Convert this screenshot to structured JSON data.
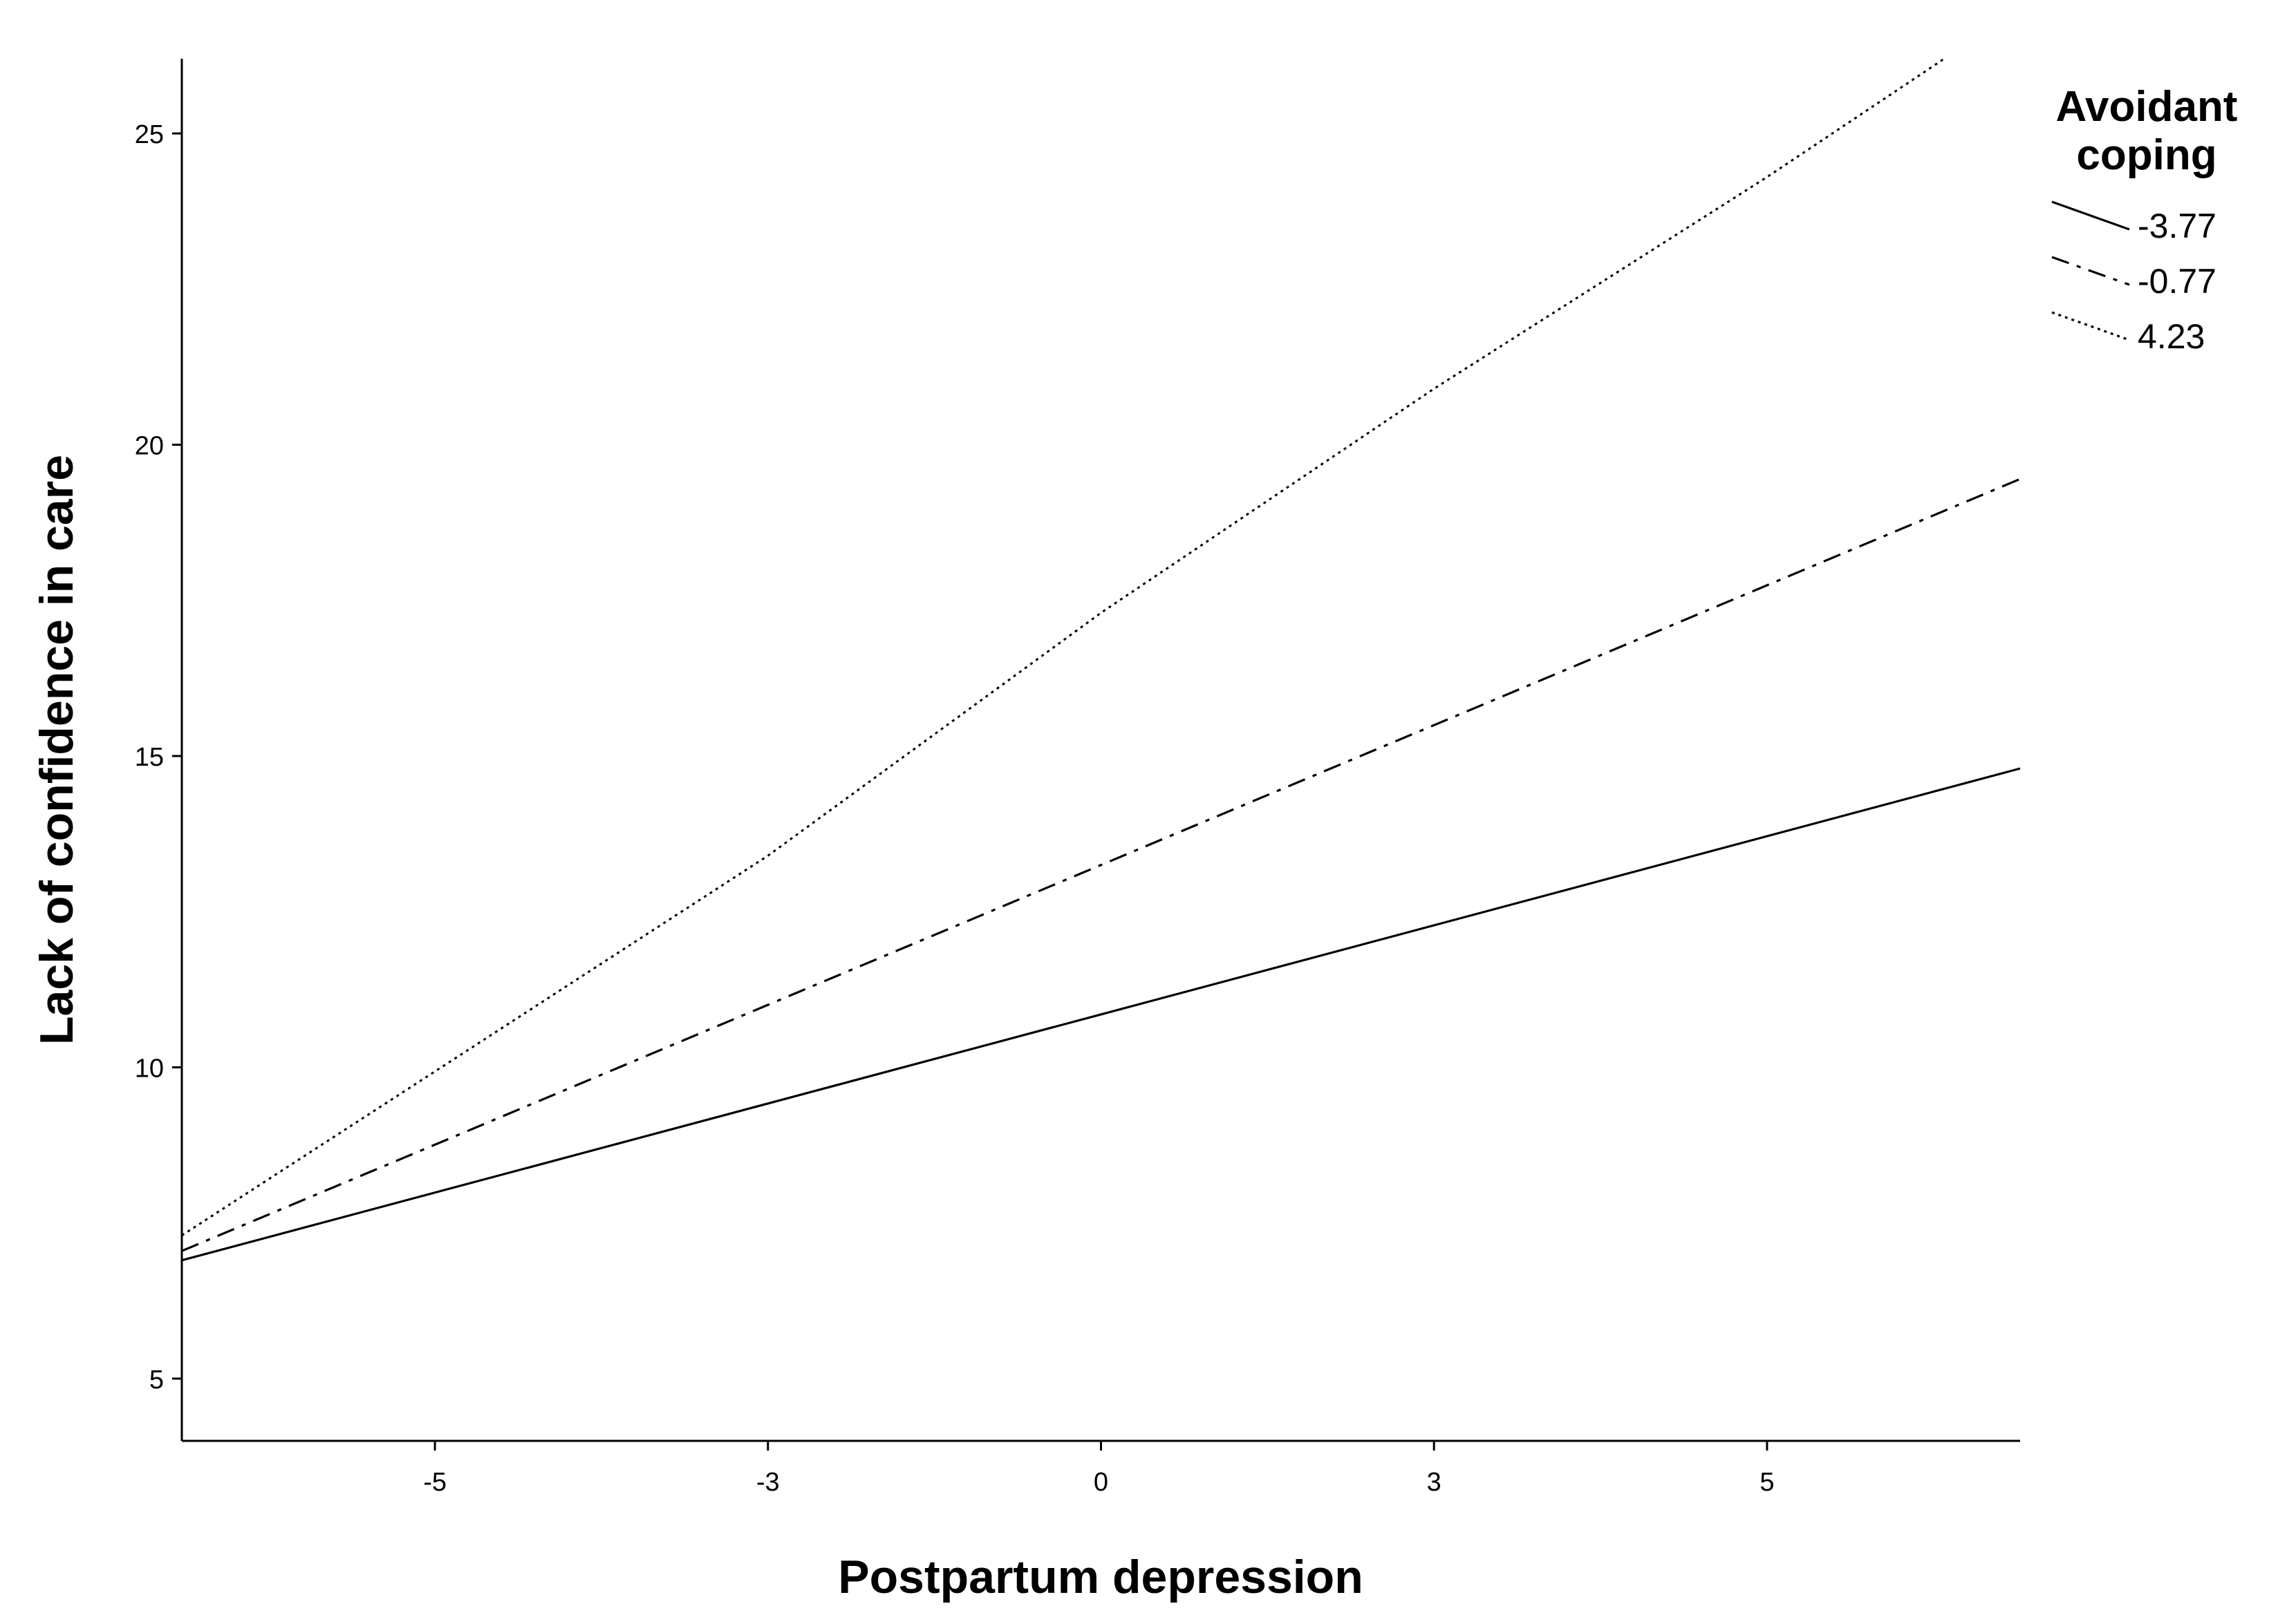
{
  "chart_data": {
    "type": "line",
    "title": "",
    "xlabel": "Postpartum depression",
    "ylabel": "Lack of confidence in care",
    "xlim": [
      -6.9,
      6.9
    ],
    "ylim": [
      4.0,
      26.2
    ],
    "x_ticks": [
      {
        "value": -5,
        "label": "-5"
      },
      {
        "value": -2.5,
        "label": "-3"
      },
      {
        "value": 0,
        "label": "0"
      },
      {
        "value": 2.5,
        "label": "3"
      },
      {
        "value": 5,
        "label": "5"
      }
    ],
    "y_ticks": [
      {
        "value": 5,
        "label": "5"
      },
      {
        "value": 10,
        "label": "10"
      },
      {
        "value": 15,
        "label": "15"
      },
      {
        "value": 20,
        "label": "20"
      },
      {
        "value": 25,
        "label": "25"
      }
    ],
    "grid": false,
    "legend": {
      "title_lines": [
        "Avoidant",
        "coping"
      ],
      "placement": "top-right"
    },
    "series": [
      {
        "name": "-3.77",
        "style": "solid",
        "color": "#000000",
        "x": [
          -6.9,
          0,
          6.9
        ],
        "y": [
          6.9,
          10.85,
          14.8
        ]
      },
      {
        "name": "-0.77",
        "style": "dash-dot",
        "color": "#000000",
        "x": [
          -6.9,
          0,
          6.9
        ],
        "y": [
          7.05,
          13.25,
          19.45
        ]
      },
      {
        "name": "4.23",
        "style": "dotted",
        "color": "#000000",
        "x": [
          -6.9,
          -2.5,
          0,
          2.5,
          5,
          6.33
        ],
        "y": [
          7.3,
          13.4,
          17.3,
          20.9,
          24.3,
          26.2
        ]
      }
    ]
  }
}
